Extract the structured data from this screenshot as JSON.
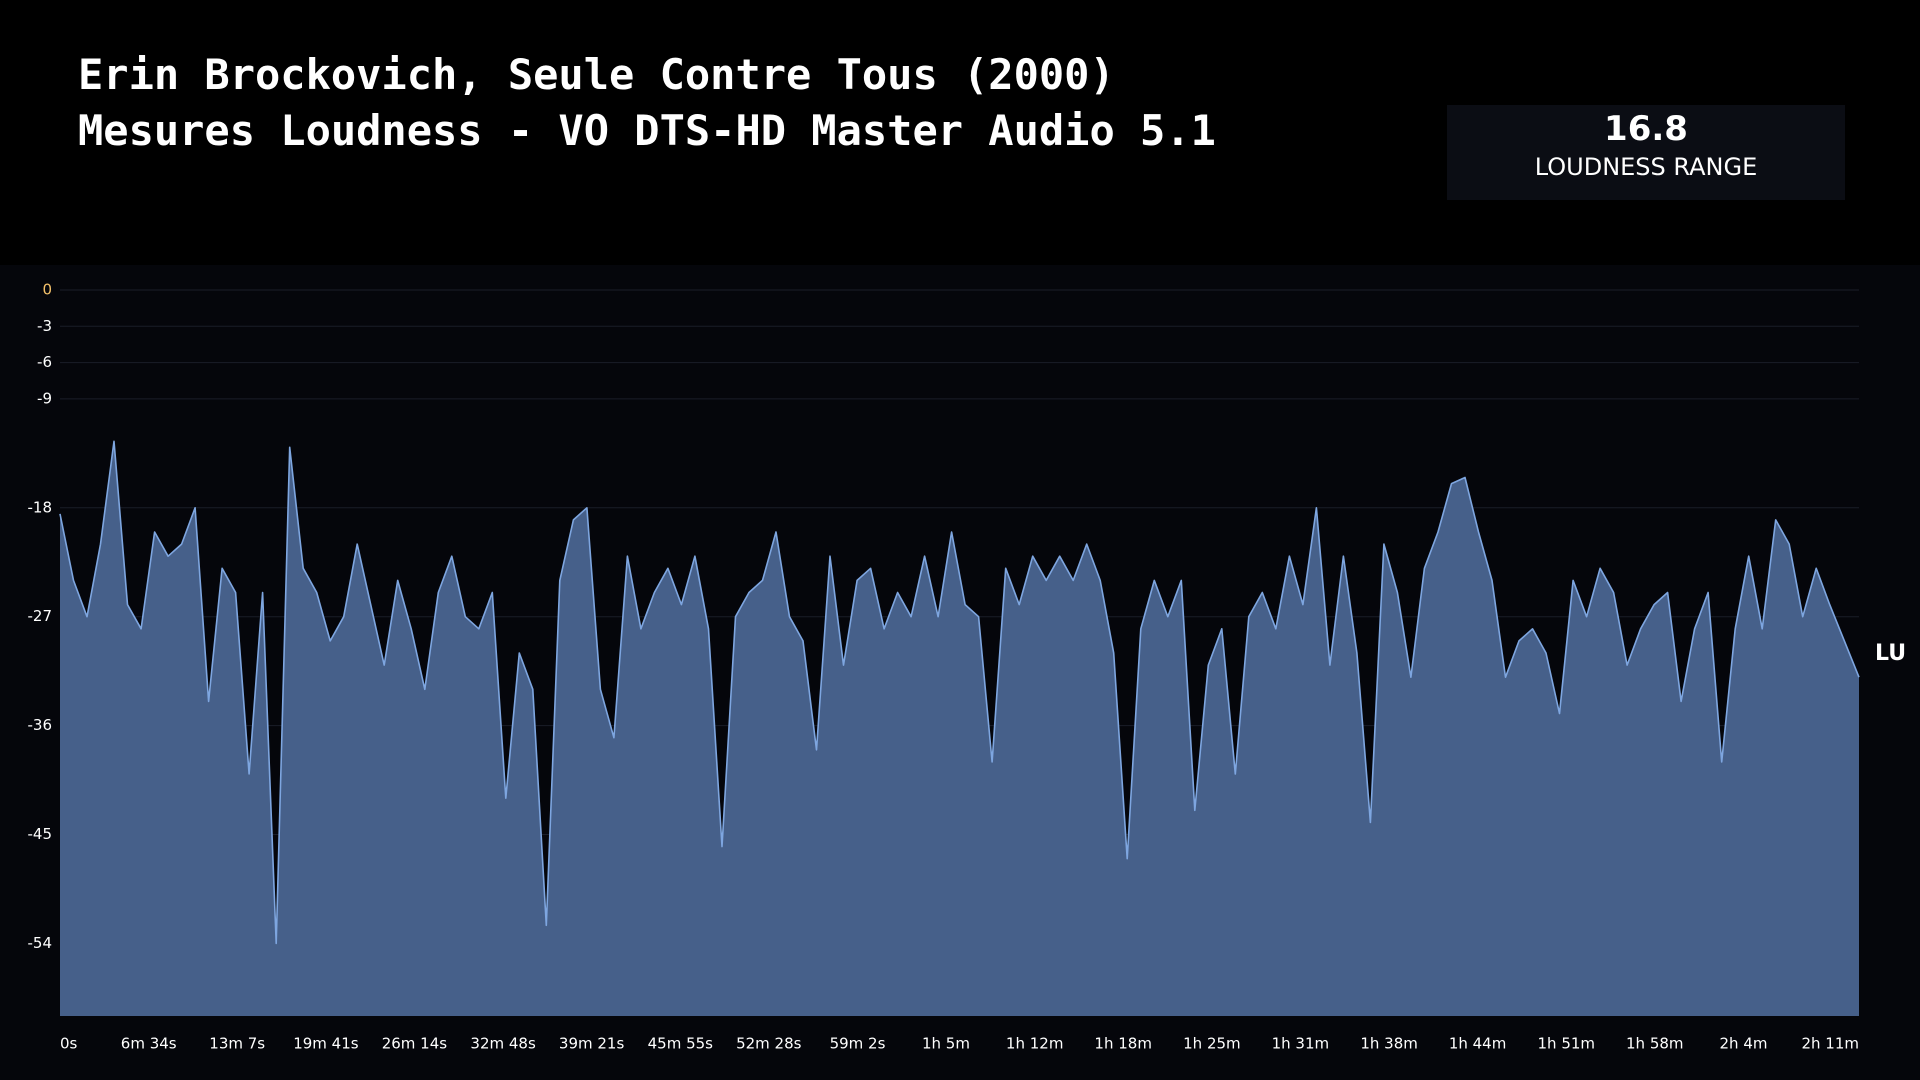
{
  "chart_data": {
    "type": "area",
    "title": "Erin Brockovich, Seule Contre Tous (2000)",
    "subtitle": "Mesures Loudness - VO DTS-HD Master Audio 5.1",
    "ylabel": "LU",
    "color": "#7ea6e0",
    "fill": "#46608a",
    "grid": true,
    "kpi": {
      "value": 16.8,
      "label": "LOUDNESS RANGE"
    },
    "ylim": [
      -60,
      0
    ],
    "yticks": [
      0,
      -3,
      -6,
      -9,
      -18,
      -27,
      -36,
      -45,
      -54
    ],
    "xlim": [
      0,
      7990
    ],
    "xticks": [
      {
        "value": 0,
        "label": "0s"
      },
      {
        "value": 394,
        "label": "6m 34s"
      },
      {
        "value": 787,
        "label": "13m 7s"
      },
      {
        "value": 1181,
        "label": "19m 41s"
      },
      {
        "value": 1574,
        "label": "26m 14s"
      },
      {
        "value": 1968,
        "label": "32m 48s"
      },
      {
        "value": 2361,
        "label": "39m 21s"
      },
      {
        "value": 2755,
        "label": "45m 55s"
      },
      {
        "value": 3148,
        "label": "52m 28s"
      },
      {
        "value": 3542,
        "label": "59m 2s"
      },
      {
        "value": 3935,
        "label": "1h 5m"
      },
      {
        "value": 4329,
        "label": "1h 12m"
      },
      {
        "value": 4722,
        "label": "1h 18m"
      },
      {
        "value": 5116,
        "label": "1h 25m"
      },
      {
        "value": 5509,
        "label": "1h 31m"
      },
      {
        "value": 5903,
        "label": "1h 38m"
      },
      {
        "value": 6296,
        "label": "1h 44m"
      },
      {
        "value": 6690,
        "label": "1h 51m"
      },
      {
        "value": 7083,
        "label": "1h 58m"
      },
      {
        "value": 7477,
        "label": "2h 4m"
      },
      {
        "value": 7870,
        "label": "2h 11m"
      }
    ],
    "x": [
      0,
      60,
      120,
      180,
      240,
      300,
      360,
      420,
      480,
      540,
      600,
      660,
      720,
      780,
      840,
      900,
      960,
      1020,
      1080,
      1140,
      1200,
      1260,
      1320,
      1380,
      1440,
      1500,
      1560,
      1620,
      1680,
      1740,
      1800,
      1860,
      1920,
      1980,
      2040,
      2100,
      2160,
      2220,
      2280,
      2340,
      2400,
      2460,
      2520,
      2580,
      2640,
      2700,
      2760,
      2820,
      2880,
      2940,
      3000,
      3060,
      3120,
      3180,
      3240,
      3300,
      3360,
      3420,
      3480,
      3540,
      3600,
      3660,
      3720,
      3780,
      3840,
      3900,
      3960,
      4020,
      4080,
      4140,
      4200,
      4260,
      4320,
      4380,
      4440,
      4500,
      4560,
      4620,
      4680,
      4740,
      4800,
      4860,
      4920,
      4980,
      5040,
      5100,
      5160,
      5220,
      5280,
      5340,
      5400,
      5460,
      5520,
      5580,
      5640,
      5700,
      5760,
      5820,
      5880,
      5940,
      6000,
      6060,
      6120,
      6180,
      6240,
      6300,
      6360,
      6420,
      6480,
      6540,
      6600,
      6660,
      6720,
      6780,
      6840,
      6900,
      6960,
      7020,
      7080,
      7140,
      7200,
      7260,
      7320,
      7380,
      7440,
      7500,
      7560,
      7620,
      7680,
      7740,
      7800,
      7860,
      7990
    ],
    "values": [
      -18.5,
      -24,
      -27,
      -21,
      -12.5,
      -26,
      -28,
      -20,
      -22,
      -21,
      -18,
      -34,
      -23,
      -25,
      -40,
      -25,
      -54,
      -13,
      -23,
      -25,
      -29,
      -27,
      -21,
      -26,
      -31,
      -24,
      -28,
      -33,
      -25,
      -22,
      -27,
      -28,
      -25,
      -42,
      -30,
      -33,
      -52.5,
      -24,
      -19,
      -18,
      -33,
      -37,
      -22,
      -28,
      -25,
      -23,
      -26,
      -22,
      -28,
      -46,
      -27,
      -25,
      -24,
      -20,
      -27,
      -29,
      -38,
      -22,
      -31,
      -24,
      -23,
      -28,
      -25,
      -27,
      -22,
      -27,
      -20,
      -26,
      -27,
      -39,
      -23,
      -26,
      -22,
      -24,
      -22,
      -24,
      -21,
      -24,
      -30,
      -47,
      -28,
      -24,
      -27,
      -24,
      -43,
      -31,
      -28,
      -40,
      -27,
      -25,
      -28,
      -22,
      -26,
      -18,
      -31,
      -22,
      -30,
      -44,
      -21,
      -25,
      -32,
      -23,
      -20,
      -16,
      -15.5,
      -20,
      -24,
      -32,
      -29,
      -28,
      -30,
      -35,
      -24,
      -27,
      -23,
      -25,
      -31,
      -28,
      -26,
      -25,
      -34,
      -28,
      -25,
      -39,
      -28,
      -22,
      -28,
      -19,
      -21,
      -27,
      -23,
      -26,
      -32
    ]
  }
}
